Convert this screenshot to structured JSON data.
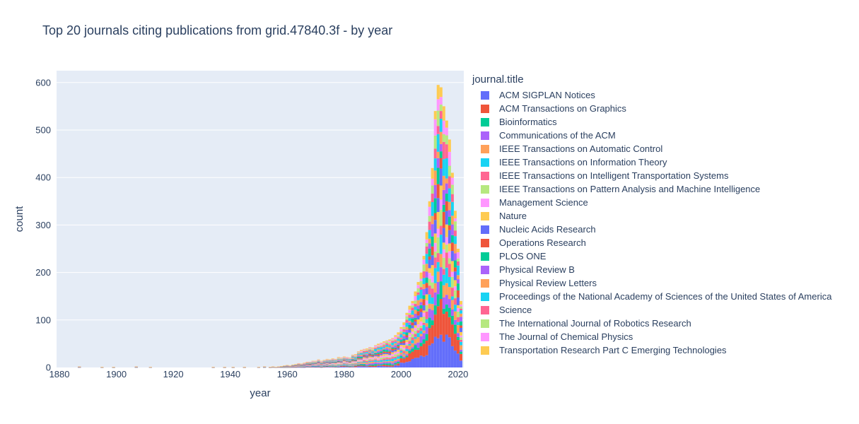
{
  "colors": {
    "plot_bg": "#e5ecf6",
    "grid": "#ffffff",
    "text": "#2a3f5f",
    "palette": [
      "#636efa",
      "#EF553B",
      "#00cc96",
      "#ab63fa",
      "#FFA15A",
      "#19d3f3",
      "#FF6692",
      "#B6E880",
      "#FF97FF",
      "#FECB52"
    ]
  },
  "chart_data": {
    "type": "bar",
    "stacked": true,
    "title": "Top 20 journals citing publications from grid.47840.3f - by year",
    "xlabel": "year",
    "ylabel": "count",
    "xlim": [
      1879,
      2022
    ],
    "ylim": [
      0,
      625
    ],
    "x_ticks": [
      1880,
      1900,
      1920,
      1940,
      1960,
      1980,
      2000,
      2020
    ],
    "y_ticks": [
      0,
      100,
      200,
      300,
      400,
      500,
      600
    ],
    "grid": true,
    "legend_title": "journal.title",
    "legend_position": "right",
    "series_names": [
      "ACM SIGPLAN Notices",
      "ACM Transactions on Graphics",
      "Bioinformatics",
      "Communications of the ACM",
      "IEEE Transactions on Automatic Control",
      "IEEE Transactions on Information Theory",
      "IEEE Transactions on Intelligent Transportation Systems",
      "IEEE Transactions on Pattern Analysis and Machine Intelligence",
      "Management Science",
      "Nature",
      "Nucleic Acids Research",
      "Operations Research",
      "PLOS ONE",
      "Physical Review B",
      "Physical Review Letters",
      "Proceedings of the National Academy of Sciences of the United States of America",
      "Science",
      "The International Journal of Robotics Research",
      "The Journal of Chemical Physics",
      "Transportation Research Part C Emerging Technologies"
    ],
    "year_totals": [
      [
        1887,
        2
      ],
      [
        1895,
        1
      ],
      [
        1899,
        1
      ],
      [
        1907,
        2
      ],
      [
        1912,
        1
      ],
      [
        1934,
        1
      ],
      [
        1938,
        1
      ],
      [
        1941,
        1
      ],
      [
        1945,
        1
      ],
      [
        1950,
        1
      ],
      [
        1952,
        2
      ],
      [
        1954,
        1
      ],
      [
        1955,
        2
      ],
      [
        1956,
        1
      ],
      [
        1957,
        2
      ],
      [
        1958,
        3
      ],
      [
        1959,
        4
      ],
      [
        1960,
        5
      ],
      [
        1961,
        4
      ],
      [
        1962,
        6
      ],
      [
        1963,
        7
      ],
      [
        1964,
        9
      ],
      [
        1965,
        8
      ],
      [
        1966,
        10
      ],
      [
        1967,
        12
      ],
      [
        1968,
        12
      ],
      [
        1969,
        14
      ],
      [
        1970,
        14
      ],
      [
        1971,
        17
      ],
      [
        1972,
        14
      ],
      [
        1973,
        16
      ],
      [
        1974,
        18
      ],
      [
        1975,
        17
      ],
      [
        1976,
        19
      ],
      [
        1977,
        18
      ],
      [
        1978,
        22
      ],
      [
        1979,
        21
      ],
      [
        1980,
        23
      ],
      [
        1981,
        22
      ],
      [
        1982,
        21
      ],
      [
        1983,
        27
      ],
      [
        1984,
        28
      ],
      [
        1985,
        34
      ],
      [
        1986,
        37
      ],
      [
        1987,
        39
      ],
      [
        1988,
        40
      ],
      [
        1989,
        43
      ],
      [
        1990,
        42
      ],
      [
        1991,
        47
      ],
      [
        1992,
        50
      ],
      [
        1993,
        52
      ],
      [
        1994,
        55
      ],
      [
        1995,
        57
      ],
      [
        1996,
        59
      ],
      [
        1997,
        62
      ],
      [
        1998,
        68
      ],
      [
        1999,
        74
      ],
      [
        2000,
        85
      ],
      [
        2001,
        95
      ],
      [
        2002,
        115
      ],
      [
        2003,
        130
      ],
      [
        2004,
        140
      ],
      [
        2005,
        160
      ],
      [
        2006,
        180
      ],
      [
        2007,
        200
      ],
      [
        2008,
        235
      ],
      [
        2009,
        285
      ],
      [
        2010,
        350
      ],
      [
        2011,
        420
      ],
      [
        2012,
        540
      ],
      [
        2013,
        595
      ],
      [
        2014,
        590
      ],
      [
        2015,
        550
      ],
      [
        2016,
        520
      ],
      [
        2017,
        480
      ],
      [
        2018,
        410
      ],
      [
        2019,
        330
      ],
      [
        2020,
        250
      ],
      [
        2021,
        140
      ]
    ]
  }
}
